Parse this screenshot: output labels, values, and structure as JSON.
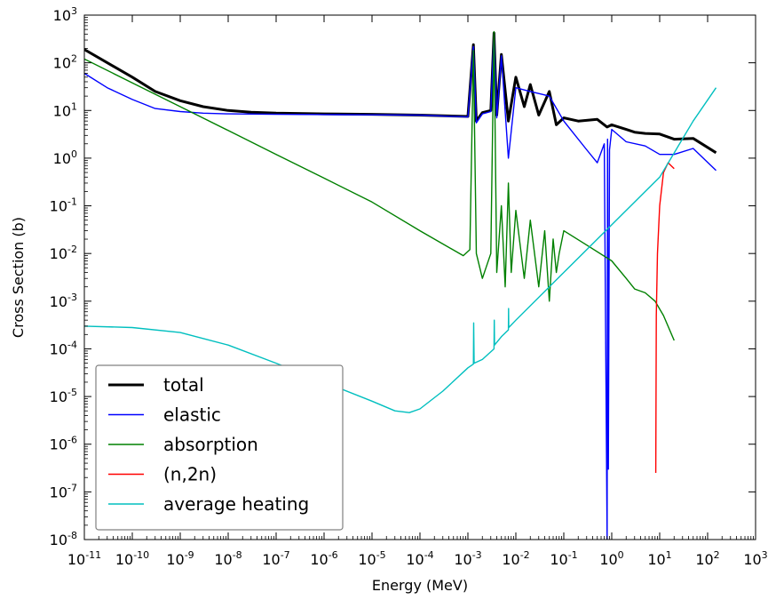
{
  "chart_data": {
    "type": "line",
    "xlabel": "Energy (MeV)",
    "ylabel": "Cross Section (b)",
    "xscale": "log",
    "yscale": "log",
    "xlim": [
      1e-11,
      1000
    ],
    "ylim": [
      1e-08,
      1000
    ],
    "x_tick_exponents": [
      -11,
      -10,
      -9,
      -8,
      -7,
      -6,
      -5,
      -4,
      -3,
      -2,
      -1,
      0,
      1,
      2,
      3
    ],
    "y_tick_exponents": [
      -8,
      -7,
      -6,
      -5,
      -4,
      -3,
      -2,
      -1,
      0,
      1,
      2,
      3
    ],
    "tick_base": "10",
    "legend_position": "lower-left",
    "grid": false,
    "series": [
      {
        "name": "total",
        "color": "#000000",
        "x": [
          1e-11,
          3e-11,
          1e-10,
          3e-10,
          1e-09,
          3e-09,
          1e-08,
          3e-08,
          1e-07,
          1e-06,
          1e-05,
          0.0001,
          0.001,
          0.0013,
          0.0015,
          0.002,
          0.003,
          0.0035,
          0.004,
          0.005,
          0.007,
          0.01,
          0.015,
          0.02,
          0.03,
          0.05,
          0.07,
          0.1,
          0.2,
          0.5,
          0.8,
          1,
          2,
          3,
          5,
          10,
          20,
          50,
          150
        ],
        "y": [
          190,
          100,
          50,
          25,
          16,
          12,
          10,
          9.2,
          8.8,
          8.5,
          8.3,
          8.0,
          7.5,
          240,
          6,
          9,
          10,
          420,
          8,
          150,
          6,
          50,
          12,
          35,
          8,
          25,
          5,
          7,
          6,
          6.5,
          4.5,
          5,
          4,
          3.5,
          3.3,
          3.2,
          2.5,
          2.6,
          1.3
        ]
      },
      {
        "name": "elastic",
        "color": "#0000ff",
        "x": [
          1e-11,
          3e-11,
          1e-10,
          3e-10,
          1e-09,
          3e-09,
          1e-08,
          1e-07,
          1e-06,
          1e-05,
          0.0001,
          0.001,
          0.0013,
          0.0015,
          0.002,
          0.003,
          0.0035,
          0.004,
          0.005,
          0.007,
          0.01,
          0.02,
          0.05,
          0.1,
          0.3,
          0.5,
          0.7,
          0.8,
          0.82,
          0.85,
          0.9,
          1,
          2,
          5,
          10,
          20,
          50,
          150
        ],
        "y": [
          60,
          30,
          17,
          11,
          9.5,
          8.8,
          8.5,
          8.3,
          8.2,
          8.1,
          8.0,
          7.3,
          220,
          5.5,
          8.5,
          9.5,
          400,
          7,
          140,
          1.0,
          30,
          25,
          20,
          6,
          1.5,
          0.8,
          2.0,
          1e-08,
          2.5,
          3e-07,
          1.5,
          4.0,
          2.2,
          1.8,
          1.2,
          1.2,
          1.6,
          0.55
        ]
      },
      {
        "name": "absorption",
        "color": "#008000",
        "x": [
          1e-11,
          1e-10,
          1e-09,
          1e-08,
          1e-07,
          1e-06,
          1e-05,
          0.0001,
          0.0008,
          0.0011,
          0.0013,
          0.0015,
          0.002,
          0.003,
          0.0035,
          0.004,
          0.005,
          0.006,
          0.007,
          0.008,
          0.01,
          0.015,
          0.02,
          0.03,
          0.04,
          0.05,
          0.06,
          0.07,
          0.08,
          0.1,
          0.3,
          1,
          2,
          3,
          5,
          8,
          12,
          20
        ],
        "y": [
          120,
          38,
          12,
          3.8,
          1.2,
          0.38,
          0.12,
          0.03,
          0.009,
          0.012,
          180,
          0.01,
          0.003,
          0.01,
          450,
          0.004,
          0.1,
          0.002,
          0.3,
          0.004,
          0.08,
          0.003,
          0.05,
          0.002,
          0.03,
          0.001,
          0.02,
          0.004,
          0.01,
          0.03,
          0.015,
          0.007,
          0.003,
          0.0018,
          0.0015,
          0.001,
          0.0005,
          0.00015
        ]
      },
      {
        "name": "(n,2n)",
        "color": "#ff0000",
        "x": [
          8.3,
          8.5,
          9,
          10,
          12,
          15,
          20
        ],
        "y": [
          2.5e-07,
          0.0005,
          0.01,
          0.1,
          0.5,
          0.8,
          0.6
        ]
      },
      {
        "name": "average heating",
        "color": "#00bfbf",
        "x": [
          1e-11,
          1e-10,
          1e-09,
          1e-08,
          1e-07,
          1e-06,
          1e-05,
          3e-05,
          6e-05,
          0.0001,
          0.0003,
          0.001,
          0.0013,
          0.00132,
          0.00135,
          0.002,
          0.0035,
          0.00355,
          0.0036,
          0.005,
          0.007,
          0.00705,
          0.0071,
          0.01,
          0.1,
          1,
          10,
          50,
          150
        ],
        "y": [
          0.0003,
          0.00028,
          0.00022,
          0.00012,
          5e-05,
          2e-05,
          8e-06,
          5e-06,
          4.6e-06,
          5.5e-06,
          1.3e-05,
          4e-05,
          4.8e-05,
          0.00035,
          5e-05,
          6e-05,
          0.0001,
          0.0004,
          0.00012,
          0.00018,
          0.00025,
          0.0007,
          0.00028,
          0.0004,
          0.004,
          0.04,
          0.4,
          6,
          30
        ]
      }
    ]
  }
}
